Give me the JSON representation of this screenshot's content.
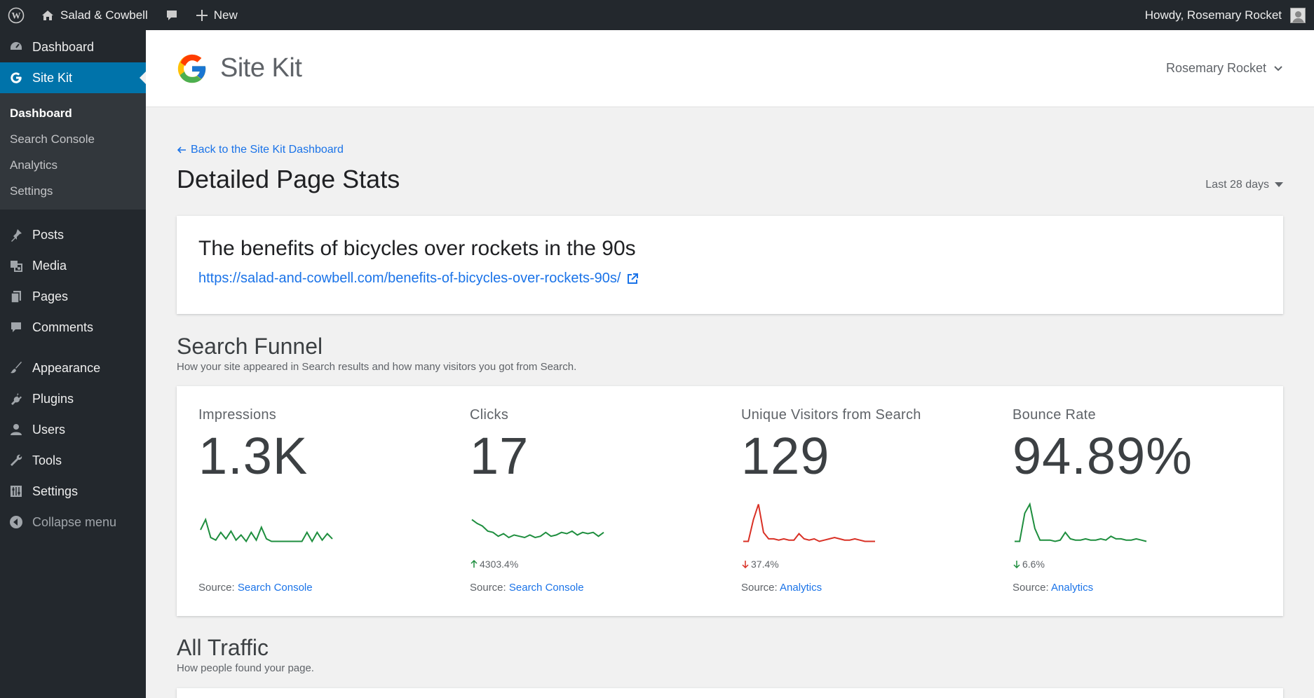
{
  "adminbar": {
    "site_name": "Salad & Cowbell",
    "new_label": "New",
    "greeting": "Howdy, Rosemary Rocket"
  },
  "sidebar": {
    "items_top": [
      {
        "label": "Dashboard",
        "icon": "gauge-icon"
      },
      {
        "label": "Site Kit",
        "icon": "google-g-icon"
      }
    ],
    "submenu": [
      {
        "label": "Dashboard"
      },
      {
        "label": "Search Console"
      },
      {
        "label": "Analytics"
      },
      {
        "label": "Settings"
      }
    ],
    "items_group1": [
      {
        "label": "Posts",
        "icon": "pin-icon"
      },
      {
        "label": "Media",
        "icon": "media-icon"
      },
      {
        "label": "Pages",
        "icon": "pages-icon"
      },
      {
        "label": "Comments",
        "icon": "comment-icon"
      }
    ],
    "items_group2": [
      {
        "label": "Appearance",
        "icon": "brush-icon"
      },
      {
        "label": "Plugins",
        "icon": "plug-icon"
      },
      {
        "label": "Users",
        "icon": "user-icon"
      },
      {
        "label": "Tools",
        "icon": "wrench-icon"
      },
      {
        "label": "Settings",
        "icon": "sliders-icon"
      }
    ],
    "collapse_label": "Collapse menu"
  },
  "header": {
    "title": "Site Kit",
    "user": "Rosemary Rocket"
  },
  "main": {
    "back_link": "Back to the Site Kit Dashboard",
    "page_title": "Detailed Page Stats",
    "date_range": "Last 28 days",
    "post_title": "The benefits of bicycles over rockets in the 90s",
    "post_url": "https://salad-and-cowbell.com/benefits-of-bicycles-over-rockets-90s/",
    "funnel_title": "Search Funnel",
    "funnel_sub": "How your site appeared in Search results and how many visitors you got from Search.",
    "traffic_title": "All Traffic",
    "traffic_sub": "How people found your page."
  },
  "metrics": [
    {
      "label": "Impressions",
      "value": "1.3K",
      "change": "",
      "change_dir": "",
      "source_prefix": "Source:",
      "source": "Search Console",
      "color": "#1e8e3e",
      "spark": [
        24,
        40,
        12,
        8,
        20,
        10,
        22,
        8,
        16,
        6,
        20,
        8,
        28,
        10,
        6,
        6,
        6,
        6,
        6,
        6,
        6,
        20,
        6,
        20,
        8,
        18,
        10
      ]
    },
    {
      "label": "Clicks",
      "value": "17",
      "change": "4303.4%",
      "change_dir": "up",
      "source_prefix": "Source:",
      "source": "Search Console",
      "color": "#1e8e3e",
      "spark": [
        40,
        34,
        30,
        22,
        20,
        14,
        18,
        12,
        16,
        14,
        12,
        16,
        12,
        14,
        20,
        14,
        16,
        20,
        18,
        22,
        16,
        20,
        18,
        20,
        14,
        20
      ]
    },
    {
      "label": "Unique Visitors from Search",
      "value": "129",
      "change": "37.4%",
      "change_dir": "down",
      "source_prefix": "Source:",
      "source": "Analytics",
      "color": "#d93025",
      "spark": [
        6,
        6,
        40,
        64,
        20,
        10,
        10,
        8,
        10,
        8,
        8,
        18,
        10,
        8,
        10,
        6,
        8,
        10,
        12,
        10,
        8,
        8,
        10,
        8,
        6,
        6,
        6
      ]
    },
    {
      "label": "Bounce Rate",
      "value": "94.89%",
      "change": "6.6%",
      "change_dir": "down",
      "source_prefix": "Source:",
      "source": "Analytics",
      "color": "#1e8e3e",
      "spark": [
        6,
        6,
        50,
        64,
        26,
        8,
        8,
        8,
        6,
        8,
        20,
        10,
        8,
        8,
        10,
        8,
        8,
        10,
        8,
        14,
        10,
        10,
        8,
        8,
        10,
        8,
        6
      ]
    }
  ]
}
